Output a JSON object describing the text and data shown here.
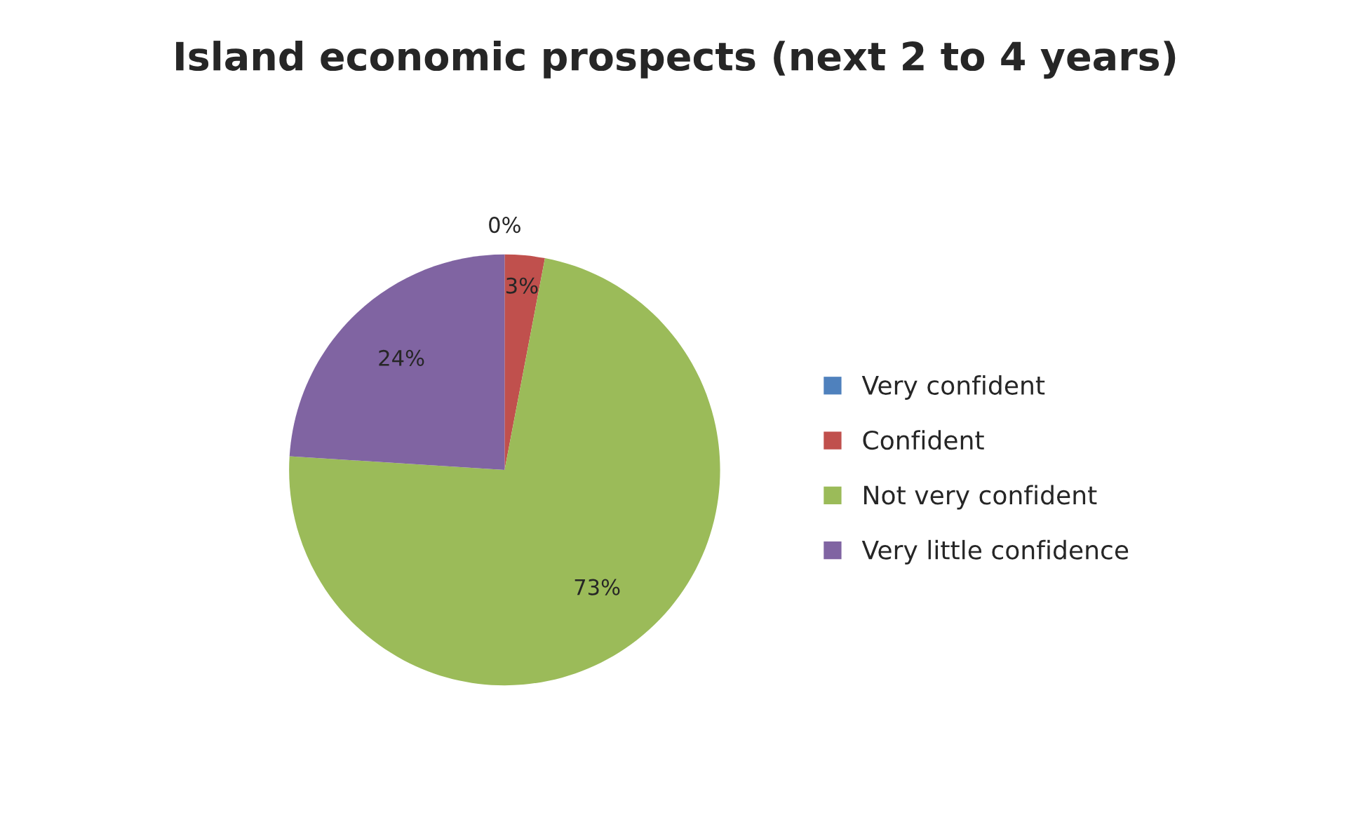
{
  "chart_data": {
    "type": "pie",
    "title": "Island economic prospects (next 2 to 4 years)",
    "categories": [
      "Very confident",
      "Confident",
      "Not very confident",
      "Very little confidence"
    ],
    "values": [
      0,
      3,
      73,
      24
    ],
    "value_labels": [
      "0%",
      "3%",
      "73%",
      "24%"
    ],
    "colors": [
      "#4f81bd",
      "#c0504d",
      "#9bbb59",
      "#8064a2"
    ],
    "legend": "right"
  }
}
